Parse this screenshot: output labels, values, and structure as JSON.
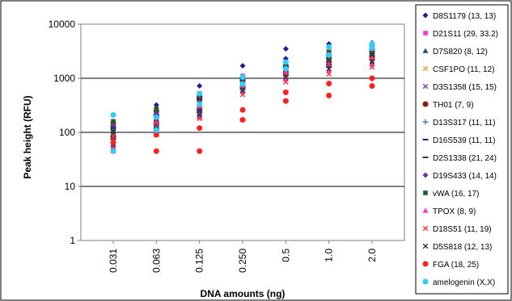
{
  "chart_data": {
    "type": "scatter",
    "x_scale": "categorical",
    "y_scale": "log",
    "categories": [
      "0.031",
      "0.063",
      "0.125",
      "0.250",
      "0.5",
      "1.0",
      "2.0"
    ],
    "xlabel": "DNA amounts (ng)",
    "ylabel": "Peak height (RFU)",
    "ylim": [
      1,
      10000
    ],
    "y_ticks": [
      "1",
      "10",
      "100",
      "1000",
      "10000"
    ],
    "grid": true,
    "legend_position": "right",
    "series": [
      {
        "name": "D8S1179 (13, 13)",
        "marker": "diamond",
        "color": "#1f1f8f",
        "values": [
          [
            100,
            110
          ],
          [
            180,
            320
          ],
          [
            420,
            720
          ],
          [
            1100,
            1700
          ],
          [
            2300,
            3500
          ],
          [
            3300,
            4300
          ],
          [
            4000,
            4500
          ]
        ]
      },
      {
        "name": "D21S11 (29, 33.2)",
        "marker": "square",
        "color": "#ff33cc",
        "values": [
          [
            60,
            95
          ],
          [
            130,
            230
          ],
          [
            250,
            450
          ],
          [
            800,
            1100
          ],
          [
            1300,
            1800
          ],
          [
            2200,
            2800
          ],
          [
            2700,
            3400
          ]
        ]
      },
      {
        "name": "D7S820 (8, 12)",
        "marker": "triangle",
        "color": "#1f4e79",
        "values": [
          [
            70,
            130
          ],
          [
            110,
            210
          ],
          [
            220,
            420
          ],
          [
            650,
            950
          ],
          [
            1200,
            1600
          ],
          [
            1900,
            2800
          ],
          [
            2700,
            3700
          ]
        ]
      },
      {
        "name": "CSF1PO (11, 12)",
        "marker": "x",
        "color": "#ff9933",
        "values": [
          [
            95,
            75
          ],
          [
            150,
            260
          ],
          [
            300,
            530
          ],
          [
            750,
            1000
          ],
          [
            1500,
            1900
          ],
          [
            2500,
            3200
          ],
          [
            3000,
            3900
          ]
        ]
      },
      {
        "name": "D3S1358 (15, 15)",
        "marker": "x",
        "color": "#7f3f9f",
        "values": [
          [
            55,
            90
          ],
          [
            110,
            170
          ],
          [
            200,
            400
          ],
          [
            600,
            900
          ],
          [
            1000,
            1400
          ],
          [
            1500,
            2200
          ],
          [
            2100,
            2800
          ]
        ]
      },
      {
        "name": "TH01 (7, 9)",
        "marker": "circle",
        "color": "#8b1a1a",
        "values": [
          [
            80,
            150
          ],
          [
            150,
            250
          ],
          [
            280,
            430
          ],
          [
            700,
            1000
          ],
          [
            1300,
            1700
          ],
          [
            2000,
            2600
          ],
          [
            2400,
            3100
          ]
        ]
      },
      {
        "name": "D13S317 (11, 11)",
        "marker": "plus",
        "color": "#4682b4",
        "values": [
          [
            65,
            115
          ],
          [
            130,
            190
          ],
          [
            230,
            390
          ],
          [
            620,
            860
          ],
          [
            1100,
            1500
          ],
          [
            1700,
            2400
          ],
          [
            2300,
            3000
          ]
        ]
      },
      {
        "name": "D16S539 (11, 11)",
        "marker": "dash",
        "color": "#1f1f8f",
        "values": [
          [
            85,
            120
          ],
          [
            140,
            210
          ],
          [
            260,
            460
          ],
          [
            680,
            960
          ],
          [
            1250,
            1650
          ],
          [
            1800,
            2700
          ],
          [
            2600,
            3500
          ]
        ]
      },
      {
        "name": "D2S1338 (21, 24)",
        "marker": "dash",
        "color": "#333333",
        "values": [
          [
            75,
            130
          ],
          [
            120,
            200
          ],
          [
            240,
            410
          ],
          [
            660,
            920
          ],
          [
            1150,
            1550
          ],
          [
            1600,
            2300
          ],
          [
            2200,
            2900
          ]
        ]
      },
      {
        "name": "D19S433 (14, 14)",
        "marker": "diamond",
        "color": "#7030a0",
        "values": [
          [
            90,
            140
          ],
          [
            160,
            230
          ],
          [
            290,
            480
          ],
          [
            720,
            980
          ],
          [
            1350,
            1750
          ],
          [
            2100,
            2900
          ],
          [
            2500,
            3300
          ]
        ]
      },
      {
        "name": "vWA (16, 17)",
        "marker": "square",
        "color": "#1e5f1e",
        "values": [
          [
            100,
            160
          ],
          [
            170,
            270
          ],
          [
            310,
            500
          ],
          [
            760,
            1020
          ],
          [
            1400,
            1850
          ],
          [
            2300,
            3000
          ],
          [
            2800,
            3600
          ]
        ]
      },
      {
        "name": "TPOX (8, 9)",
        "marker": "triangle",
        "color": "#ff33cc",
        "values": [
          [
            45,
            70
          ],
          [
            90,
            160
          ],
          [
            190,
            320
          ],
          [
            560,
            780
          ],
          [
            950,
            1300
          ],
          [
            1400,
            2000
          ],
          [
            1800,
            2500
          ]
        ]
      },
      {
        "name": "D18S51 (11, 19)",
        "marker": "x",
        "color": "#ff3333",
        "values": [
          [
            50,
            85
          ],
          [
            100,
            150
          ],
          [
            180,
            300
          ],
          [
            500,
            720
          ],
          [
            850,
            1200
          ],
          [
            1200,
            1800
          ],
          [
            1600,
            2300
          ]
        ]
      },
      {
        "name": "D5S818 (12, 13)",
        "marker": "x",
        "color": "#333333",
        "values": [
          [
            60,
            105
          ],
          [
            120,
            175
          ],
          [
            210,
            360
          ],
          [
            590,
            830
          ],
          [
            1050,
            1450
          ],
          [
            1500,
            2100
          ],
          [
            2000,
            2700
          ]
        ]
      },
      {
        "name": "FGA (18, 25)",
        "marker": "circle",
        "color": "#ff2020",
        "values": [
          [
            45,
            65
          ],
          [
            45,
            90
          ],
          [
            45,
            120
          ],
          [
            170,
            260
          ],
          [
            380,
            550
          ],
          [
            480,
            800
          ],
          [
            720,
            1000
          ]
        ]
      },
      {
        "name": "amelogenin (X,X)",
        "marker": "circle",
        "color": "#33ccff",
        "values": [
          [
            45,
            210
          ],
          [
            110,
            190
          ],
          [
            330,
            520
          ],
          [
            780,
            1050
          ],
          [
            1500,
            2000
          ],
          [
            2700,
            3800
          ],
          [
            3600,
            4300
          ]
        ]
      }
    ]
  }
}
